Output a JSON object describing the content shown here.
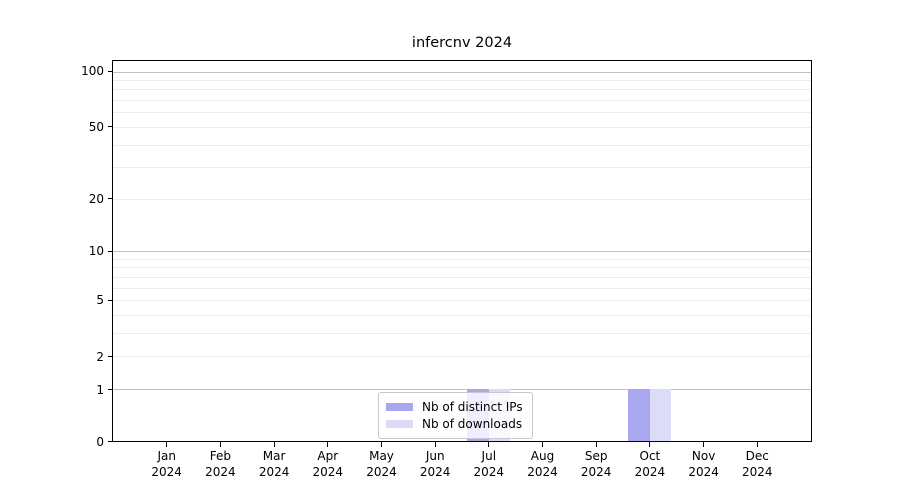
{
  "figure": {
    "title": "infercnv 2024"
  },
  "chart_data": {
    "type": "bar",
    "title": "infercnv 2024",
    "categories": [
      "Jan",
      "Feb",
      "Mar",
      "Apr",
      "May",
      "Jun",
      "Jul",
      "Aug",
      "Sep",
      "Oct",
      "Nov",
      "Dec"
    ],
    "x_tick_year": "2024",
    "series": [
      {
        "name": "Nb of distinct IPs",
        "color": "#a8a8f0",
        "values": [
          0,
          0,
          0,
          0,
          0,
          0,
          1,
          0,
          0,
          1,
          0,
          0
        ]
      },
      {
        "name": "Nb of downloads",
        "color": "#dcdcf8",
        "values": [
          0,
          0,
          0,
          0,
          0,
          0,
          1,
          0,
          0,
          1,
          0,
          0
        ]
      }
    ],
    "y_axis": {
      "scale": "log1p",
      "tick_labels": [
        0,
        1,
        2,
        5,
        10,
        20,
        50,
        100
      ],
      "major_gridlines": [
        1,
        10,
        100
      ],
      "minor_gridlines": [
        2,
        3,
        4,
        5,
        6,
        7,
        8,
        9,
        20,
        30,
        40,
        50,
        60,
        70,
        80,
        90
      ],
      "ylim": [
        0,
        114
      ]
    },
    "legend": {
      "position": "lower center"
    },
    "grid": true,
    "colors": {
      "axis": "#000000",
      "major_gridline": "#c2c2c2",
      "minor_gridline": "#ededed",
      "background": "#ffffff"
    }
  }
}
